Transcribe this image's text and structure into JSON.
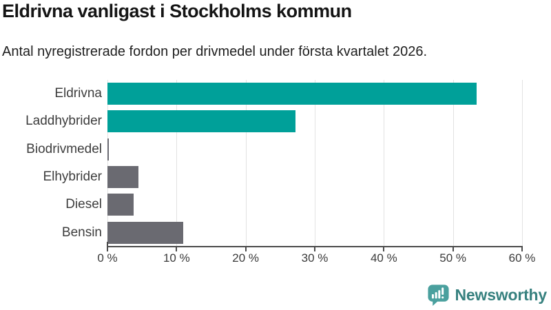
{
  "chart_data": {
    "type": "bar",
    "orientation": "horizontal",
    "title": "Eldrivna vanligast i Stockholms kommun",
    "subtitle": "Antal nyregistrerade fordon per drivmedel under första kvartalet 2026.",
    "categories": [
      "Eldrivna",
      "Laddhybrider",
      "Biodrivmedel",
      "Elhybrider",
      "Diesel",
      "Bensin"
    ],
    "values": [
      53.4,
      27.2,
      0.2,
      4.5,
      3.8,
      11.0
    ],
    "unit": "%",
    "xlim": [
      0,
      60
    ],
    "x_ticks": [
      {
        "value": 0,
        "label": "0 %"
      },
      {
        "value": 10,
        "label": "10 %"
      },
      {
        "value": 20,
        "label": "20 %"
      },
      {
        "value": 30,
        "label": "30 %"
      },
      {
        "value": 40,
        "label": "40 %"
      },
      {
        "value": 50,
        "label": "50 %"
      },
      {
        "value": 60,
        "label": "60 %"
      }
    ],
    "grid": "vertical",
    "legend": "none",
    "bar_colors": [
      "#00A099",
      "#00A099",
      "#6A6A71",
      "#6A6A71",
      "#6A6A71",
      "#6A6A71"
    ],
    "colors": {
      "highlight_teal": "#00A099",
      "default_gray": "#6A6A71",
      "gridline": "#E2E2E2",
      "axis": "#4A4A4A",
      "label_text": "#3D3D3D"
    }
  },
  "footer": {
    "brand_label": "Newsworthy",
    "logo_icon": "newsworthy-speech-bubble-bar-chart-icon",
    "brand_text_color": "#37817F",
    "logo_fill": "#4AA09E"
  }
}
